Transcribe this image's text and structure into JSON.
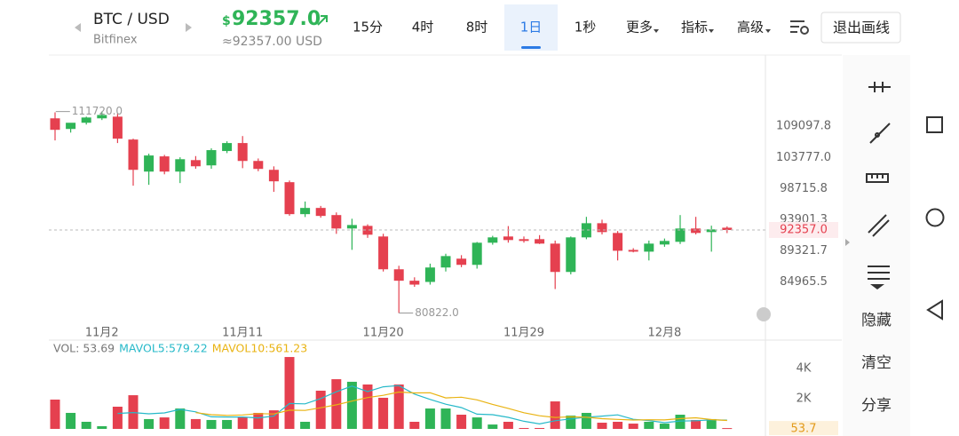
{
  "header": {
    "symbol": "BTC / USD",
    "exchange": "Bitfinex",
    "currency": "$",
    "price": "92357.0",
    "price_usd": "≈92357.00 USD"
  },
  "toolbar": {
    "intervals": [
      "15分",
      "4时",
      "8时",
      "1日",
      "1秒"
    ],
    "active": 3,
    "more": "更多",
    "indicators": "指标",
    "advanced": "高级",
    "exit": "退出画线"
  },
  "sidebar": {
    "actions": [
      "隐藏",
      "清空",
      "分享"
    ]
  },
  "chart_data": [
    {
      "type": "candlestick",
      "log_scale": true,
      "grid": false,
      "up_color": "#2fb457",
      "down_color": "#e5404f",
      "categories": [
        null,
        null,
        null,
        "11月2",
        null,
        null,
        null,
        null,
        null,
        null,
        null,
        null,
        "11月11",
        null,
        null,
        null,
        null,
        null,
        null,
        null,
        null,
        "11月20",
        null,
        null,
        null,
        null,
        null,
        null,
        null,
        null,
        "11月29",
        null,
        null,
        null,
        null,
        null,
        null,
        null,
        null,
        "12月8",
        null,
        null,
        null,
        null
      ],
      "open": [
        110500,
        108630,
        109720,
        110500,
        110800,
        106800,
        101440,
        103950,
        101440,
        103330,
        102460,
        104850,
        106200,
        103190,
        101730,
        99730,
        94740,
        95690,
        94600,
        92580,
        92970,
        91400,
        86710,
        85130,
        84966,
        86960,
        88200,
        87330,
        90490,
        91400,
        91010,
        91010,
        90360,
        86340,
        91270,
        93370,
        91920,
        89450,
        89200,
        90230,
        90620,
        92580,
        92050,
        92700
      ],
      "high": [
        111570,
        109400,
        110800,
        111720,
        111300,
        106950,
        104400,
        104200,
        103800,
        104000,
        105300,
        106500,
        107400,
        103600,
        102300,
        100000,
        96680,
        96000,
        95000,
        94040,
        93200,
        91800,
        87200,
        85600,
        87500,
        88900,
        88700,
        90600,
        91500,
        92940,
        91400,
        91600,
        90800,
        91400,
        94330,
        93900,
        92200,
        89700,
        90800,
        91100,
        94600,
        94330,
        93000,
        92900
      ],
      "low": [
        106650,
        108000,
        109400,
        110200,
        106200,
        99170,
        99310,
        101000,
        99590,
        101900,
        101900,
        104500,
        102000,
        101500,
        98190,
        94500,
        94300,
        94200,
        91790,
        89460,
        91200,
        86400,
        80822,
        84300,
        84600,
        86400,
        87000,
        86800,
        90200,
        90500,
        90500,
        90300,
        84000,
        86000,
        91000,
        91700,
        87950,
        89100,
        87950,
        89900,
        90300,
        91700,
        89200,
        91900
      ],
      "close": [
        108480,
        109720,
        110650,
        111100,
        106950,
        101730,
        104100,
        101440,
        103480,
        102310,
        105000,
        106200,
        103190,
        101880,
        99870,
        94740,
        95690,
        94470,
        92580,
        93100,
        91660,
        86710,
        85130,
        84600,
        86960,
        88570,
        87330,
        90490,
        91270,
        90880,
        90750,
        90360,
        86340,
        91270,
        93370,
        92050,
        89330,
        89200,
        90360,
        90750,
        92580,
        91920,
        92450,
        92357
      ],
      "ylim": [
        79400,
        121800
      ],
      "yticks": [
        109097.8,
        {
          "value": 103777,
          "label": "103777.0"
        },
        98715.8,
        93901.3,
        89321.7,
        84965.5
      ],
      "annotations": [
        {
          "value": 111720,
          "label": "111720.0"
        },
        {
          "value": 80822,
          "label": "80822.0"
        }
      ],
      "last_price": {
        "value": 92357,
        "label": "92357.0"
      }
    },
    {
      "type": "bar",
      "ylim": [
        0,
        5880
      ],
      "values": [
        1940,
        1060,
        470,
        180,
        1470,
        2230,
        650,
        760,
        1350,
        650,
        590,
        590,
        760,
        1060,
        1230,
        4760,
        470,
        2530,
        3290,
        3120,
        2940,
        2060,
        2940,
        470,
        1350,
        1350,
        940,
        760,
        290,
        470,
        60,
        60,
        1820,
        880,
        1060,
        410,
        470,
        350,
        470,
        350,
        940,
        590,
        650,
        53.69
      ],
      "lines": [
        {
          "color": "#26b9c9",
          "values": [
            null,
            null,
            null,
            null,
            1024,
            1082,
            1000,
            1058,
            1292,
            1128,
            800,
            788,
            788,
            730,
            846,
            1680,
            1656,
            2010,
            2456,
            2834,
            2470,
            2788,
            2870,
            2306,
            1952,
            1634,
            1410,
            974,
            938,
            762,
            504,
            328,
            540,
            658,
            776,
            846,
            928,
            634,
            552,
            410,
            516,
            540,
            600,
            579.22
          ]
        },
        {
          "color": "#e9b312",
          "values": [
            null,
            null,
            null,
            null,
            null,
            null,
            null,
            null,
            null,
            1076,
            941,
            894,
            923,
            1011,
            987,
            1240,
            1222,
            1399,
            1593,
            1840,
            2075,
            2222,
            2440,
            2381,
            2393,
            2052,
            2099,
            1922,
            1622,
            1357,
            1069,
            869,
            757,
            798,
            769,
            675,
            628,
            587,
            605,
            593,
            681,
            734,
            617,
            561.23
          ]
        }
      ],
      "legend": [
        "VOL: 53.69",
        "MAVOL5:579.22",
        "MAVOL10:561.23"
      ],
      "yticks": [
        {
          "value": 4000,
          "label": "4K"
        },
        {
          "value": 2000,
          "label": "2K"
        }
      ],
      "last_value": {
        "value": 53.69,
        "label": "53.7"
      }
    }
  ]
}
